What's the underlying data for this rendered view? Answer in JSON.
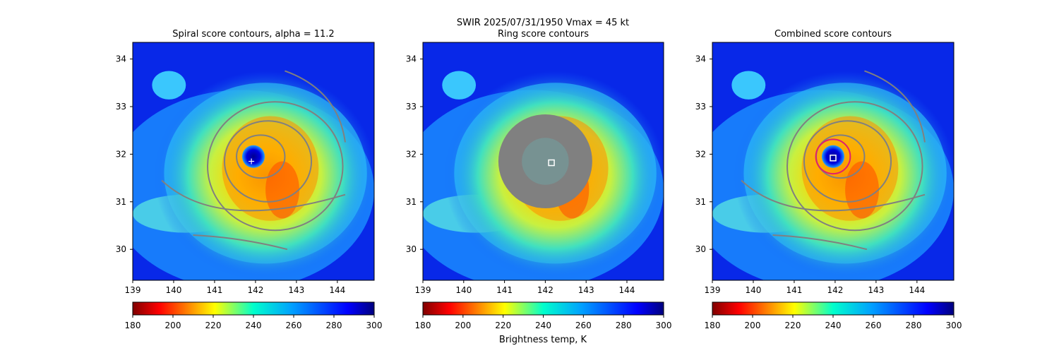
{
  "suptitle_line1": "SWIR  2025/07/31/1950    Vmax = 45 kt",
  "colorbar_label": "Brightness temp, K",
  "colors": {
    "contour": "#808080",
    "ring": "#e0206c",
    "marker": "#ffffff"
  },
  "chart_data": [
    {
      "type": "heatmap",
      "title": "Spiral score contours, alpha = 11.2",
      "xticks": [
        "139",
        "140",
        "141",
        "142",
        "143",
        "144"
      ],
      "yticks": [
        "34",
        "33",
        "32",
        "31",
        "30"
      ],
      "xlim": [
        139,
        144.9
      ],
      "ylim": [
        29.35,
        34.35
      ],
      "colorbar": {
        "ticks": [
          "180",
          "200",
          "220",
          "240",
          "260",
          "280",
          "300"
        ],
        "range": [
          180,
          300
        ],
        "colormap": "jet_r"
      },
      "center_marker": {
        "symbol": "plus",
        "x": 141.9,
        "y": 31.85
      },
      "eye": {
        "x": 141.95,
        "y": 31.95
      }
    },
    {
      "type": "heatmap",
      "title": "Ring score contours",
      "xticks": [
        "139",
        "140",
        "141",
        "142",
        "143",
        "144"
      ],
      "yticks": [
        "34",
        "33",
        "32",
        "31",
        "30"
      ],
      "xlim": [
        139,
        144.9
      ],
      "ylim": [
        29.35,
        34.35
      ],
      "colorbar": {
        "ticks": [
          "180",
          "200",
          "220",
          "240",
          "260",
          "280",
          "300"
        ],
        "range": [
          180,
          300
        ],
        "colormap": "jet_r"
      },
      "center_marker": {
        "symbol": "square",
        "x": 142.15,
        "y": 31.82
      },
      "masked_disk": {
        "x": 142.0,
        "y": 31.85,
        "radius": 1.15
      },
      "eye": {
        "x": 141.95,
        "y": 31.95
      }
    },
    {
      "type": "heatmap",
      "title": "Combined score contours",
      "xticks": [
        "139",
        "140",
        "141",
        "142",
        "143",
        "144"
      ],
      "yticks": [
        "34",
        "33",
        "32",
        "31",
        "30"
      ],
      "xlim": [
        139,
        144.9
      ],
      "ylim": [
        29.35,
        34.35
      ],
      "colorbar": {
        "ticks": [
          "180",
          "200",
          "220",
          "240",
          "260",
          "280",
          "300"
        ],
        "range": [
          180,
          300
        ],
        "colormap": "jet_r"
      },
      "center_marker": {
        "symbol": "square",
        "x": 141.95,
        "y": 31.92
      },
      "ring": {
        "x": 141.95,
        "y": 31.95,
        "radius": 0.42
      },
      "eye": {
        "x": 141.95,
        "y": 31.95
      }
    }
  ]
}
